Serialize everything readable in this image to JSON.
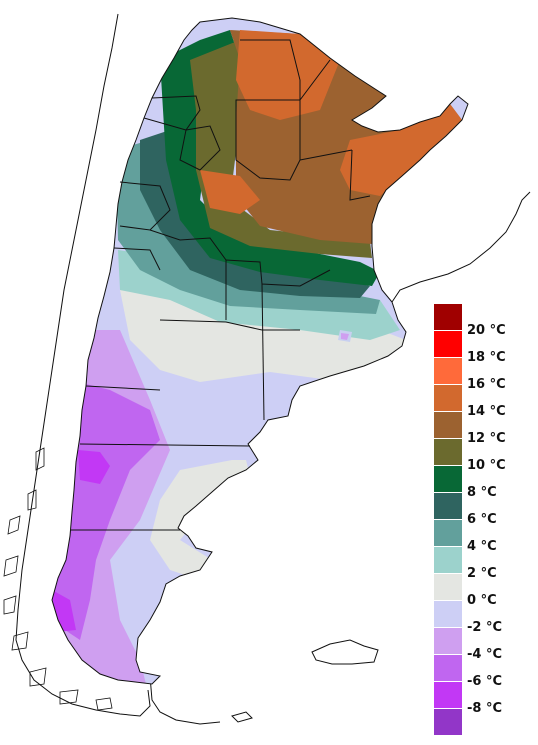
{
  "legend": {
    "entries": [
      {
        "label": "20 °C",
        "color": "#a00000"
      },
      {
        "label": "18 °C",
        "color": "#ff0000"
      },
      {
        "label": "16 °C",
        "color": "#ff6a3a"
      },
      {
        "label": "14 °C",
        "color": "#d2692e"
      },
      {
        "label": "12 °C",
        "color": "#9c6230"
      },
      {
        "label": "10 °C",
        "color": "#6b6a2e"
      },
      {
        "label": "8 °C",
        "color": "#086836"
      },
      {
        "label": "6 °C",
        "color": "#2f6460"
      },
      {
        "label": "4 °C",
        "color": "#62a09c"
      },
      {
        "label": "2 °C",
        "color": "#9cd2cc"
      },
      {
        "label": "0 °C",
        "color": "#e4e6e2"
      },
      {
        "label": "-2 °C",
        "color": "#cdcff5"
      },
      {
        "label": "-4 °C",
        "color": "#cf9ff0"
      },
      {
        "label": "-6 °C",
        "color": "#c066f0"
      },
      {
        "label": "-8 °C",
        "color": "#c238f5"
      },
      {
        "label": "",
        "color": "#9236c8"
      }
    ]
  }
}
